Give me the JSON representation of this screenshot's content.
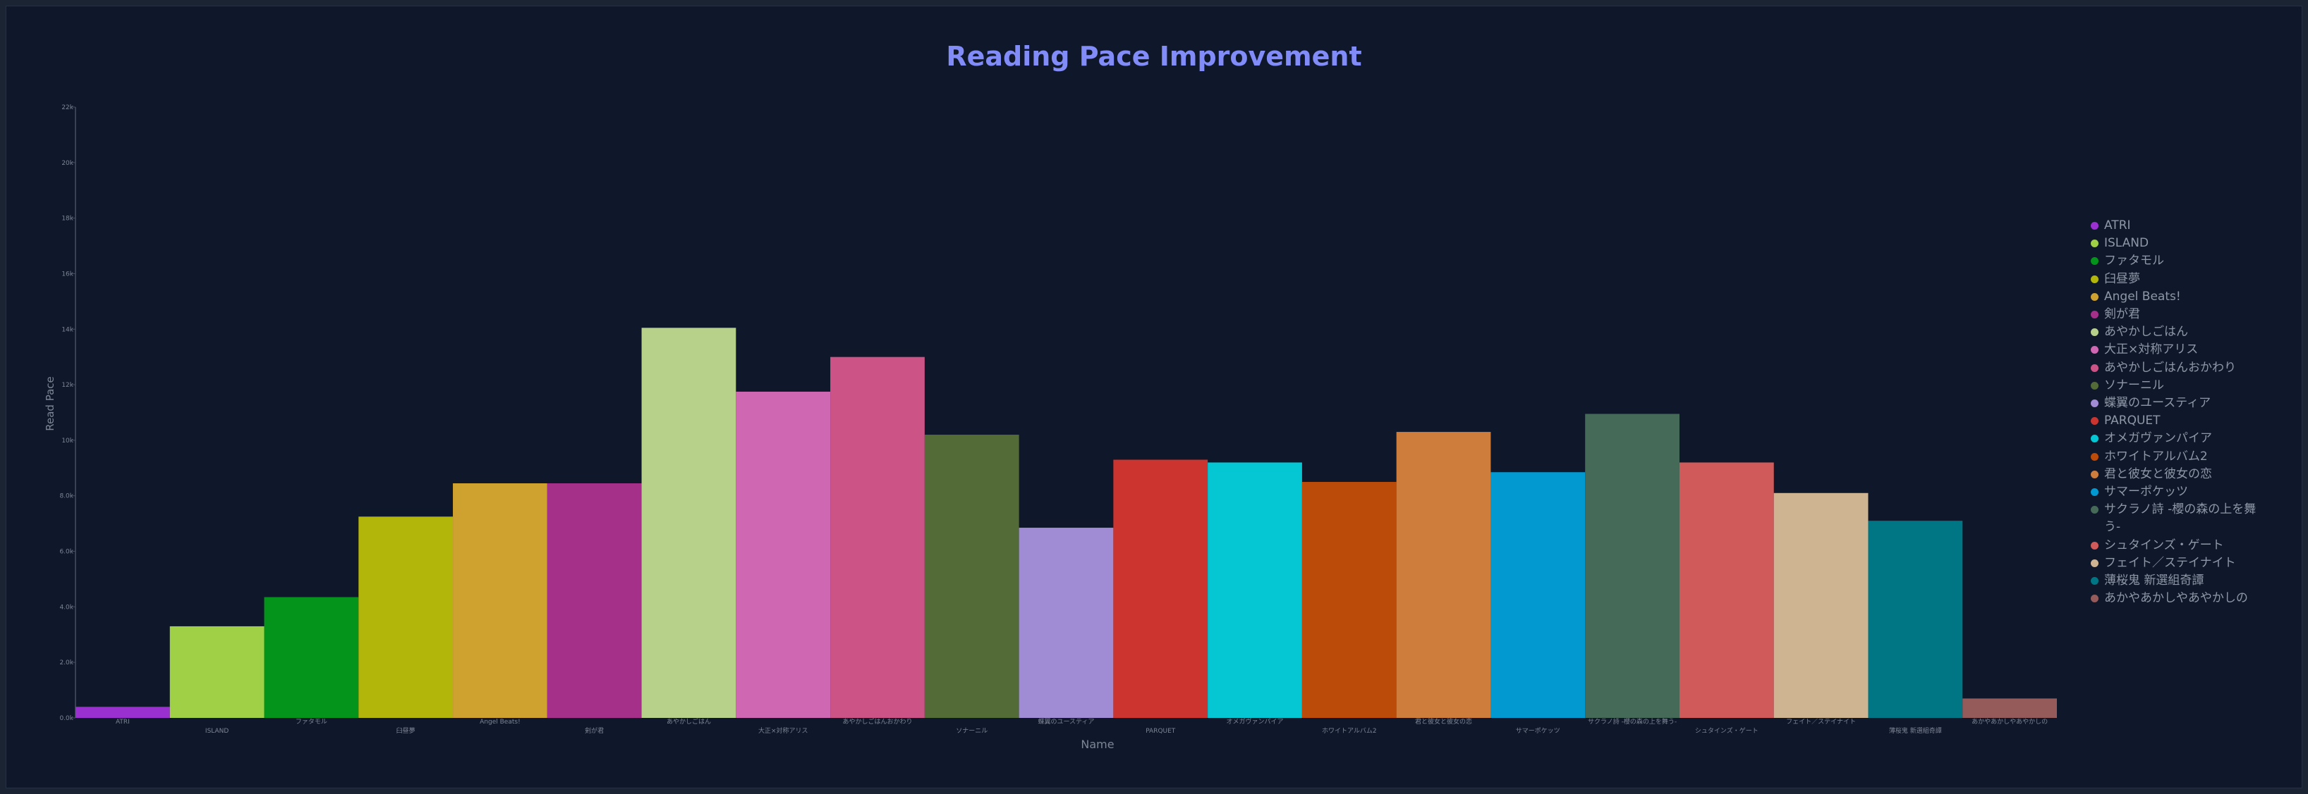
{
  "chart_data": {
    "type": "bar",
    "title": "Reading Pace Improvement",
    "xlabel": "Name",
    "ylabel": "Read Pace",
    "ylim": [
      0,
      22000
    ],
    "yticks": [
      {
        "value": 0,
        "label": "0.0k"
      },
      {
        "value": 2000,
        "label": "2.0k"
      },
      {
        "value": 4000,
        "label": "4.0k"
      },
      {
        "value": 6000,
        "label": "6.0k"
      },
      {
        "value": 8000,
        "label": "8.0k"
      },
      {
        "value": 10000,
        "label": "10k"
      },
      {
        "value": 12000,
        "label": "12k"
      },
      {
        "value": 14000,
        "label": "14k"
      },
      {
        "value": 16000,
        "label": "16k"
      },
      {
        "value": 18000,
        "label": "18k"
      },
      {
        "value": 20000,
        "label": "20k"
      },
      {
        "value": 22000,
        "label": "22k"
      }
    ],
    "legend_position": "right",
    "grid": false,
    "categories": [
      "ATRI",
      "ISLAND",
      "ファタモル",
      "臼昼夢",
      "Angel Beats!",
      "剣が君",
      "あやかしごはん",
      "大正×対称アリス",
      "あやかしごはんおかわり",
      "ソナーニル",
      "蝶翼のユースティア",
      "PARQUET",
      "オメガヴァンパイア",
      "ホワイトアルバム2",
      "君と彼女と彼女の恋",
      "サマーポケッツ",
      "サクラノ詩 -櫻の森の上を舞う-",
      "シュタインズ・ゲート",
      "フェイト／ステイナイト",
      "薄桜鬼 新選組奇譚",
      "あかやあかしやあやかしの"
    ],
    "legend_labels": [
      "ATRI",
      "ISLAND",
      "ファタモル",
      "臼昼夢",
      "Angel Beats!",
      "剣が君",
      "あやかしごはん",
      "大正×対称アリス",
      "あやかしごはんおかわり",
      "ソナーニル",
      "蝶翼のユースティア",
      "PARQUET",
      "オメガヴァンパイア",
      "ホワイトアルバム2",
      "君と彼女と彼女の恋",
      "サマーポケッツ",
      "サクラノ詩 -櫻の森の上を舞う-",
      "シュタインズ・ゲート",
      "フェイト／ステイナイト",
      "薄桜鬼 新選組奇譚",
      "あかやあかしやあやかしの"
    ],
    "values": [
      400,
      3300,
      4350,
      7250,
      8450,
      8450,
      14050,
      11750,
      13000,
      10200,
      6850,
      9300,
      9200,
      8500,
      10300,
      8850,
      10950,
      9200,
      8100,
      7100,
      700
    ],
    "colors": [
      "#9b30d0",
      "#a0d045",
      "#05941b",
      "#b2b60a",
      "#cfa22f",
      "#a5308a",
      "#b7d18b",
      "#cf67b3",
      "#cc5386",
      "#536b36",
      "#a08bd5",
      "#cc352f",
      "#04c7d3",
      "#ba4b09",
      "#cf7d3c",
      "#0199d0",
      "#456b58",
      "#cf5a59",
      "#cfb492",
      "#007684",
      "#955a5a"
    ]
  }
}
